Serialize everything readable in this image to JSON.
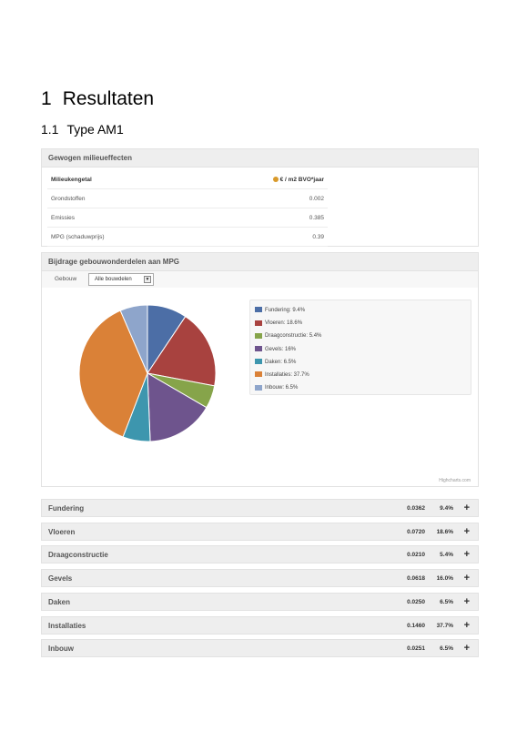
{
  "heading1": {
    "number": "1",
    "title": "Resultaten"
  },
  "heading2": {
    "number": "1.1",
    "title": "Type AM1"
  },
  "effects": {
    "title": "Gewogen milieueffecten",
    "col_label": "Milieukengetal",
    "col_unit": "€ / m2 BVO*jaar",
    "info_icon": "info-icon",
    "rows": [
      {
        "label": "Grondstoffen",
        "value": "0.002"
      },
      {
        "label": "Emissies",
        "value": "0.385"
      },
      {
        "label": "MPG (schaduwprijs)",
        "value": "0.39"
      }
    ]
  },
  "contrib": {
    "title": "Bijdrage gebouwonderdelen aan MPG",
    "filter_label": "Gebouw",
    "filter_value": "Alle bouwdelen",
    "credit": "Highcharts.com"
  },
  "chart_data": {
    "type": "pie",
    "categories": [
      "Fundering",
      "Vloeren",
      "Draagconstructie",
      "Gevels",
      "Daken",
      "Installaties",
      "Inbouw"
    ],
    "values": [
      9.4,
      18.6,
      5.4,
      16,
      6.5,
      37.7,
      6.5
    ],
    "colors": [
      "#4c6ea6",
      "#a8423f",
      "#86a44a",
      "#6e548d",
      "#3d96ae",
      "#da8137",
      "#8ea5cb"
    ],
    "legend_labels": [
      "Fundering: 9.4%",
      "Vloeren: 18.6%",
      "Draagconstructie: 5.4%",
      "Gevels: 16%",
      "Daken: 6.5%",
      "Installaties: 37.7%",
      "Inbouw: 6.5%"
    ],
    "legend_position": "right"
  },
  "components": [
    {
      "name": "Fundering",
      "value": "0.0362",
      "percent": "9.4%"
    },
    {
      "name": "Vloeren",
      "value": "0.0720",
      "percent": "18.6%"
    },
    {
      "name": "Draagconstructie",
      "value": "0.0210",
      "percent": "5.4%"
    },
    {
      "name": "Gevels",
      "value": "0.0618",
      "percent": "16.0%"
    },
    {
      "name": "Daken",
      "value": "0.0250",
      "percent": "6.5%"
    },
    {
      "name": "Installaties",
      "value": "0.1460",
      "percent": "37.7%"
    },
    {
      "name": "Inbouw",
      "value": "0.0251",
      "percent": "6.5%"
    }
  ],
  "expand_symbol": "+"
}
